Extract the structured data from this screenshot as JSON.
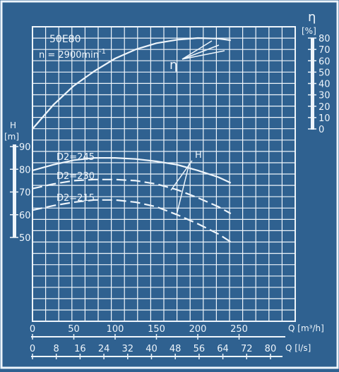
{
  "chart_data": {
    "type": "line",
    "title": "50E80",
    "speed_label": "n = 2900min",
    "speed_exponent": "-1",
    "xlabel_q": "Q [m³/h]",
    "xlabel_ql": "Q [l/s]",
    "q_ticks": [
      "0",
      "50",
      "100",
      "150",
      "200",
      "250"
    ],
    "ql_ticks": [
      "0",
      "8",
      "16",
      "24",
      "32",
      "40",
      "48",
      "56",
      "64",
      "72",
      "80"
    ],
    "h_axis_label": "H",
    "h_axis_unit": "[m]",
    "h_ticks": [
      "90",
      "80",
      "70",
      "60",
      "50"
    ],
    "eta_axis_label": "ƞ",
    "eta_axis_unit": "[%]",
    "eta_ticks": [
      "80",
      "70",
      "60",
      "50",
      "40",
      "30",
      "20",
      "10",
      "0"
    ],
    "eta_annotation": "ƞ",
    "h_annotation": "H",
    "xlim_q": [
      0,
      300
    ],
    "head_range": [
      30,
      90
    ],
    "eff_range": [
      0,
      80
    ],
    "grid": true,
    "series": [
      {
        "name": "D2=245",
        "kind": "head",
        "dash": false,
        "x": [
          0,
          25,
          50,
          75,
          100,
          125,
          150,
          175,
          200,
          225,
          240
        ],
        "y": [
          79.5,
          82,
          84,
          85,
          85,
          84.5,
          83.5,
          82,
          79.5,
          76.5,
          74
        ]
      },
      {
        "name": "D2=230",
        "kind": "head",
        "dash": true,
        "x": [
          0,
          25,
          50,
          75,
          100,
          125,
          150,
          175,
          200,
          225,
          240
        ],
        "y": [
          71.5,
          73.5,
          75,
          75.5,
          75.5,
          75,
          73.5,
          71,
          67.5,
          63.5,
          60.5
        ]
      },
      {
        "name": "D2=215",
        "kind": "head",
        "dash": true,
        "x": [
          0,
          25,
          50,
          75,
          100,
          125,
          150,
          175,
          200,
          225,
          240
        ],
        "y": [
          62,
          64,
          65.5,
          66.5,
          66.5,
          65.5,
          63.5,
          60,
          56,
          51.5,
          48
        ]
      },
      {
        "name": "ƞ",
        "kind": "efficiency",
        "dash": false,
        "x": [
          0,
          25,
          50,
          75,
          100,
          125,
          150,
          175,
          200,
          225,
          240
        ],
        "y": [
          0,
          21,
          38,
          51,
          62,
          70,
          75.5,
          78.5,
          80,
          79.5,
          78
        ]
      }
    ]
  }
}
